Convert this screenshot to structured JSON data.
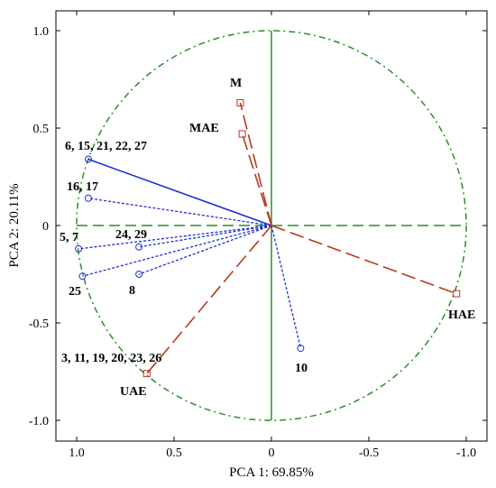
{
  "chart_data": {
    "type": "scatter",
    "title": "",
    "xlabel": "PCA 1: 69.85%",
    "ylabel": "PCA 2: 20.11%",
    "xlim": [
      1.1,
      -1.1
    ],
    "ylim": [
      -1.1,
      1.1
    ],
    "x_reversed": true,
    "xticks": [
      {
        "value": 1.0,
        "label": "1.0"
      },
      {
        "value": 0.5,
        "label": "0.5"
      },
      {
        "value": 0.0,
        "label": "0"
      },
      {
        "value": -0.5,
        "label": "-0.5"
      },
      {
        "value": -1.0,
        "label": "-1.0"
      }
    ],
    "yticks": [
      {
        "value": 1.0,
        "label": "1.0"
      },
      {
        "value": 0.5,
        "label": "0.5"
      },
      {
        "value": 0.0,
        "label": "0"
      },
      {
        "value": -0.5,
        "label": "-0.5"
      },
      {
        "value": -1.0,
        "label": "-1.0"
      }
    ],
    "unit_circle": true,
    "colors": {
      "circle": "#2e8b2e",
      "reference_lines": "#2e8b2e",
      "active_vectors": "#1f2fd0",
      "supplementary_vectors": "#b83a1e"
    },
    "series": [
      {
        "points": [
          {
            "label": "6, 15, 21, 22, 27",
            "x": 0.94,
            "y": 0.34
          },
          {
            "label": "16, 17",
            "x": 0.94,
            "y": 0.14
          },
          {
            "label": "5, 7",
            "x": 0.99,
            "y": -0.12
          },
          {
            "label": "25",
            "x": 0.97,
            "y": -0.26
          },
          {
            "label": "24, 29",
            "x": 0.68,
            "y": -0.11
          },
          {
            "label": "8",
            "x": 0.68,
            "y": -0.25
          },
          {
            "label": "10",
            "x": -0.15,
            "y": -0.63
          }
        ]
      },
      {
        "points": [
          {
            "label": "M",
            "x": 0.16,
            "y": 0.63
          },
          {
            "label": "MAE",
            "x": 0.15,
            "y": 0.47
          },
          {
            "label": "HAE",
            "x": -0.95,
            "y": -0.35
          },
          {
            "label": "3, 11, 19, 20, 23, 26",
            "x": 0.64,
            "y": -0.76
          },
          {
            "label": "UAE",
            "x": 0.64,
            "y": -0.76
          }
        ]
      }
    ]
  }
}
